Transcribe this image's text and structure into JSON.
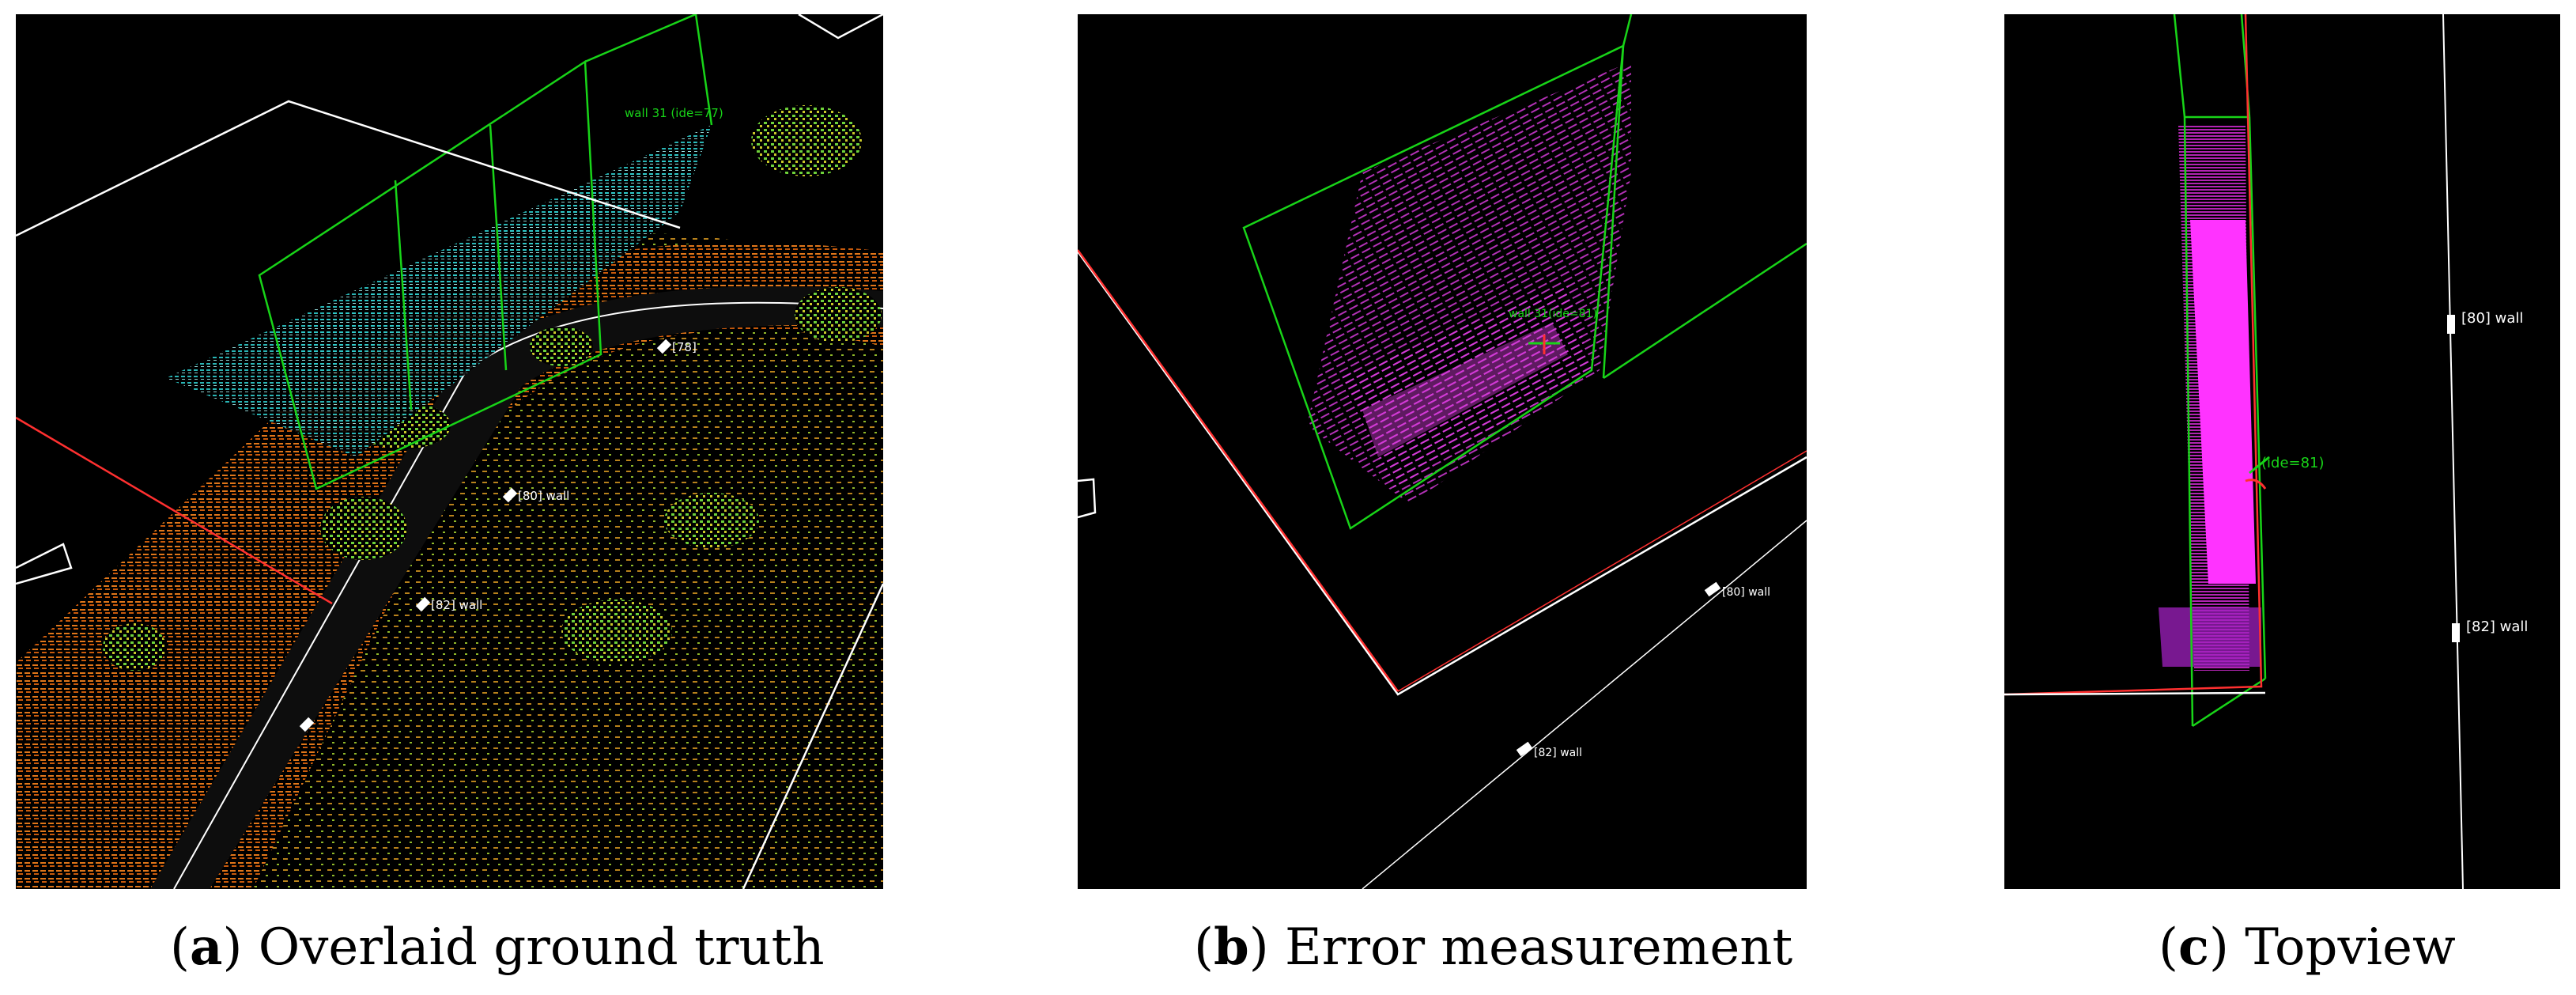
{
  "panels": [
    {
      "id": "a",
      "caption_letter": "a",
      "caption_text": "Overlaid ground truth",
      "labels": [
        "wall 31 (ide=77)",
        "[78]",
        "[80] wall",
        "[82] wall"
      ],
      "colors": {
        "wall_box": "#18d418",
        "ground_truth": "#ffffff",
        "road_cloud": "#e06a10",
        "vegetation": "#6fd23a",
        "wall_cloud": "#2ec9c9"
      }
    },
    {
      "id": "b",
      "caption_letter": "b",
      "caption_text": "Error measurement",
      "labels": [
        "wall 31(ide=81)",
        "[80] wall",
        "[82] wall"
      ],
      "colors": {
        "wall_box": "#18d418",
        "wall_cloud": "#d23ad6",
        "ground_truth": "#ffffff",
        "edge": "#ff2020"
      }
    },
    {
      "id": "c",
      "caption_letter": "c",
      "caption_text": "Topview",
      "labels": [
        "(ide=81)",
        "[80] wall",
        "[82] wall"
      ],
      "colors": {
        "wall_box": "#18d418",
        "wall_cloud": "#ff33ff",
        "ground_truth": "#ffffff",
        "edge": "#ff2020"
      }
    }
  ]
}
